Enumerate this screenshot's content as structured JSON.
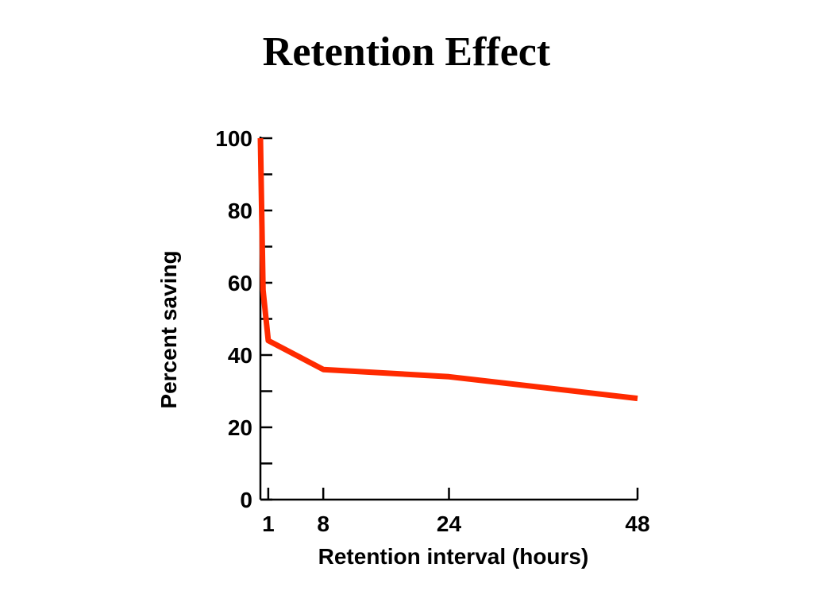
{
  "slide": {
    "title": "Retention Effect"
  },
  "chart_data": {
    "type": "line",
    "title": "",
    "xlabel": "Retention interval (hours)",
    "ylabel": "Percent saving",
    "xlim": [
      0,
      48
    ],
    "ylim": [
      0,
      100
    ],
    "x_ticks": [
      1,
      8,
      24,
      48
    ],
    "y_ticks": [
      0,
      20,
      40,
      60,
      80,
      100
    ],
    "y_minor_ticks": [
      10,
      30,
      50,
      70,
      90
    ],
    "grid": false,
    "legend": "none",
    "series": [
      {
        "color": "#ff2a00",
        "x": [
          0,
          0.33,
          1,
          8,
          24,
          48
        ],
        "y": [
          100,
          58,
          44,
          36,
          34,
          28
        ]
      }
    ]
  }
}
